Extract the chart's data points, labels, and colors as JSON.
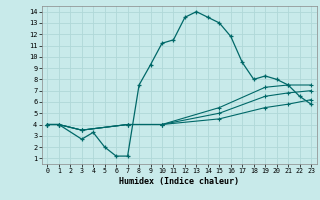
{
  "xlabel": "Humidex (Indice chaleur)",
  "xlim": [
    -0.5,
    23.5
  ],
  "ylim": [
    0.5,
    14.5
  ],
  "xticks": [
    0,
    1,
    2,
    3,
    4,
    5,
    6,
    7,
    8,
    9,
    10,
    11,
    12,
    13,
    14,
    15,
    16,
    17,
    18,
    19,
    20,
    21,
    22,
    23
  ],
  "yticks": [
    1,
    2,
    3,
    4,
    5,
    6,
    7,
    8,
    9,
    10,
    11,
    12,
    13,
    14
  ],
  "bg_color": "#c8eaea",
  "line_color": "#006868",
  "grid_color": "#b0d8d8",
  "lines": [
    {
      "x": [
        0,
        1,
        3,
        4,
        5,
        6,
        7,
        8,
        9,
        10,
        11,
        12,
        13,
        14,
        15,
        16,
        17,
        18,
        19,
        20,
        21,
        22,
        23
      ],
      "y": [
        4,
        4,
        2.7,
        3.3,
        2.0,
        1.2,
        1.2,
        7.5,
        9.3,
        11.2,
        11.5,
        13.5,
        14.0,
        13.5,
        13.0,
        11.8,
        9.5,
        8.0,
        8.3,
        8.0,
        7.5,
        6.5,
        5.8
      ]
    },
    {
      "x": [
        0,
        1,
        3,
        7,
        10,
        15,
        19,
        21,
        23
      ],
      "y": [
        4,
        4,
        3.5,
        4.0,
        4.0,
        5.5,
        7.3,
        7.5,
        7.5
      ]
    },
    {
      "x": [
        0,
        1,
        3,
        7,
        10,
        15,
        19,
        21,
        23
      ],
      "y": [
        4,
        4,
        3.5,
        4.0,
        4.0,
        5.0,
        6.5,
        6.8,
        7.0
      ]
    },
    {
      "x": [
        0,
        1,
        3,
        7,
        10,
        15,
        19,
        21,
        23
      ],
      "y": [
        4,
        4,
        3.5,
        4.0,
        4.0,
        4.5,
        5.5,
        5.8,
        6.2
      ]
    }
  ]
}
